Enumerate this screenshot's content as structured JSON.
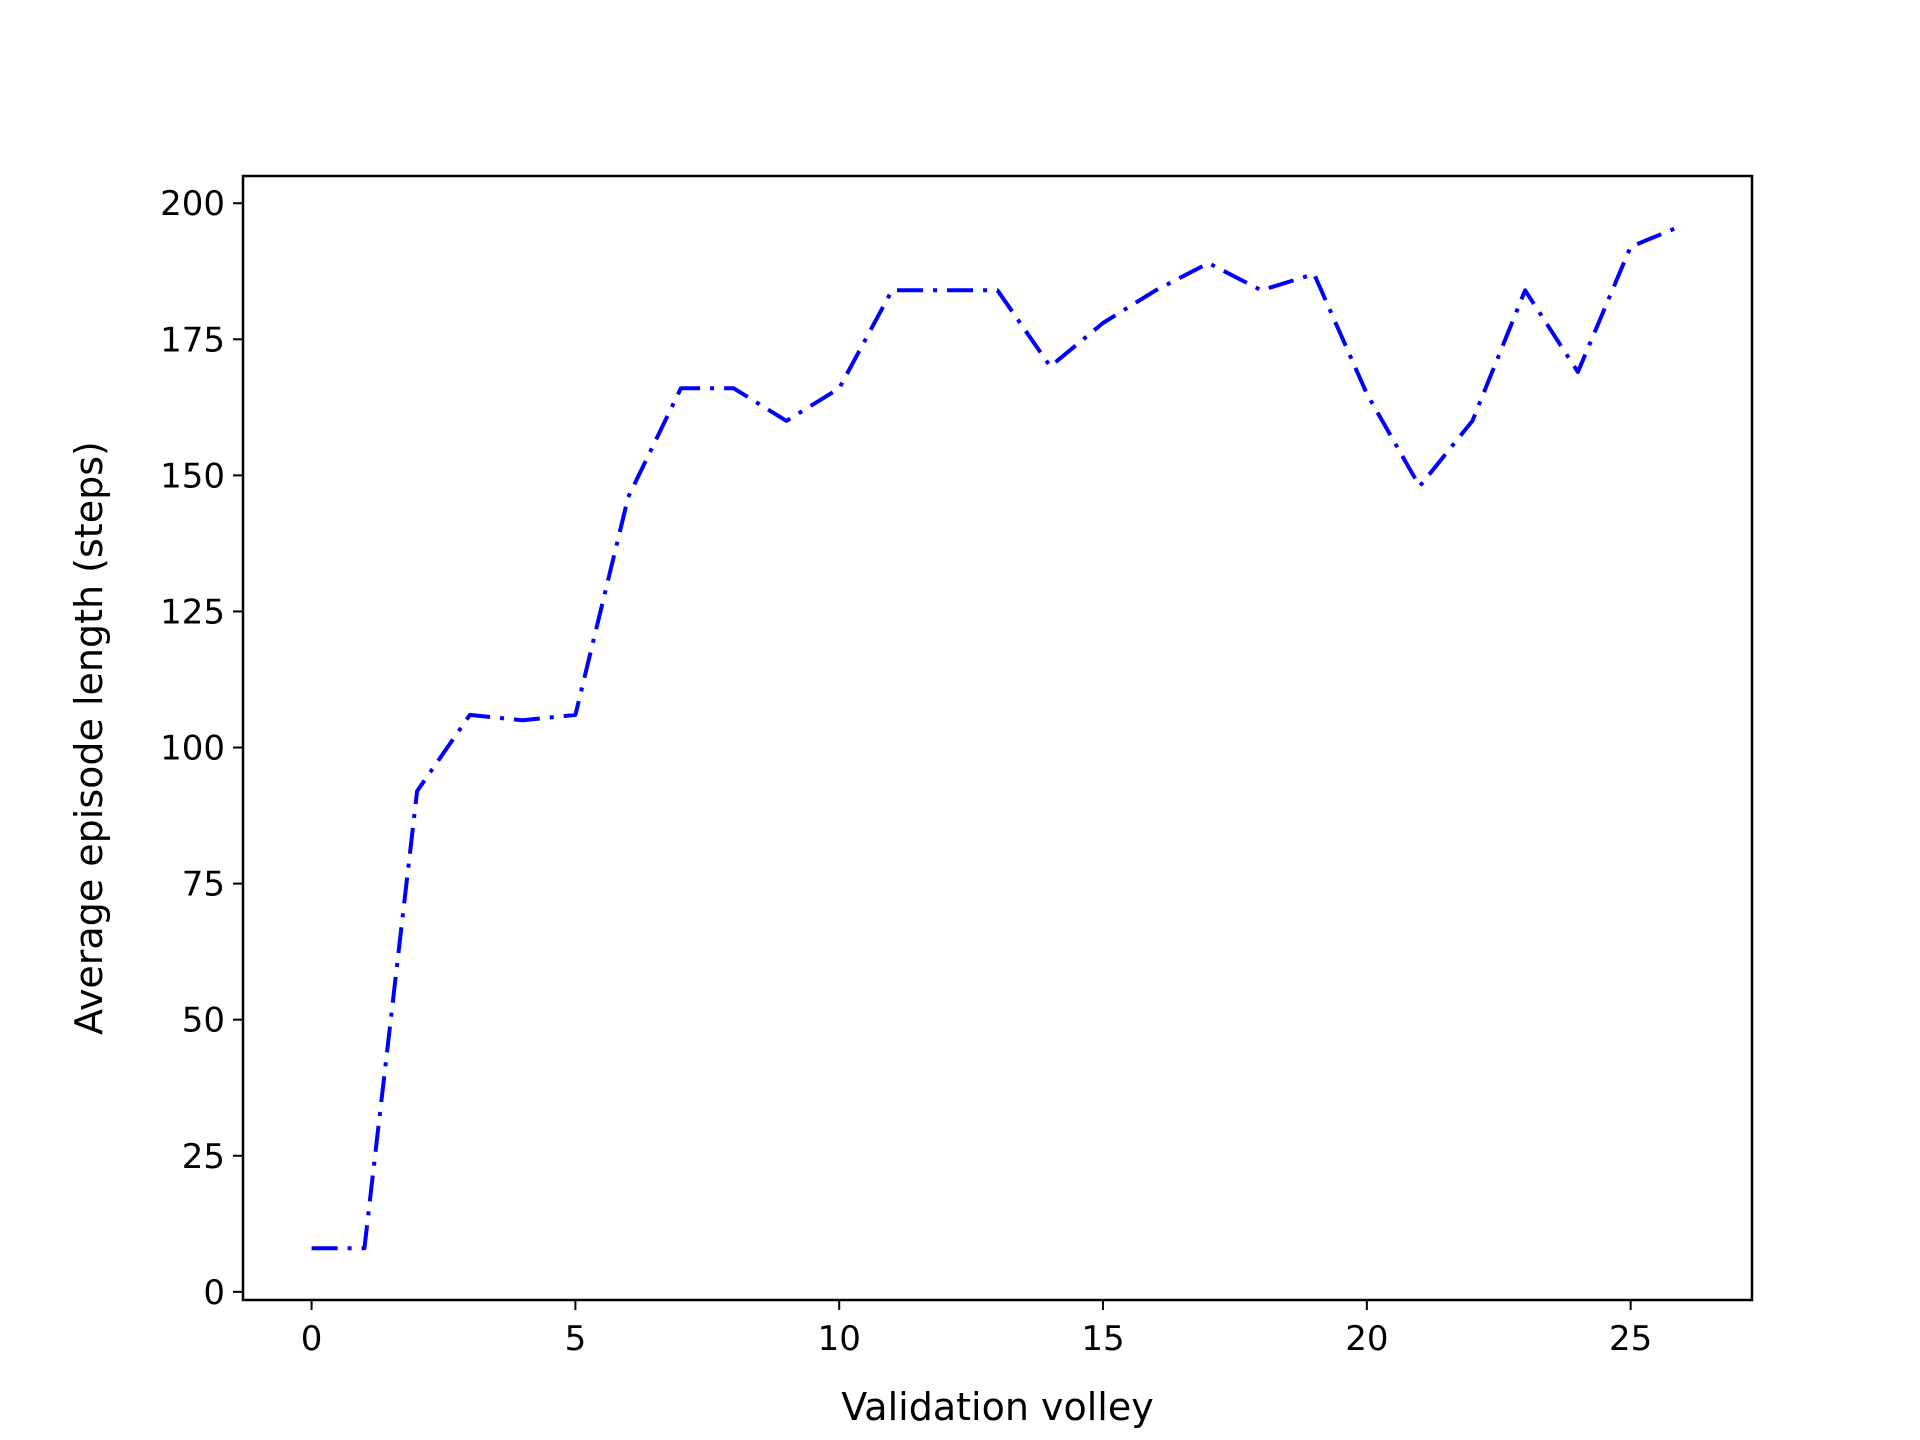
{
  "chart_data": {
    "type": "line",
    "title": "",
    "xlabel": "Validation volley",
    "ylabel": "Average episode length (steps)",
    "xlim": [
      -1.3,
      27.3
    ],
    "ylim": [
      -1.5,
      205
    ],
    "xticks": [
      0,
      5,
      10,
      15,
      20,
      25
    ],
    "yticks": [
      0,
      25,
      50,
      75,
      100,
      125,
      150,
      175,
      200
    ],
    "grid": false,
    "legend": "none",
    "series": [
      {
        "color": "#0000ff",
        "line_style": "dash-dot",
        "x": [
          0,
          1,
          2,
          3,
          4,
          5,
          6,
          7,
          8,
          9,
          10,
          11,
          12,
          13,
          14,
          15,
          16,
          17,
          18,
          19,
          20,
          21,
          22,
          23,
          24,
          25,
          26
        ],
        "y": [
          8,
          8,
          92,
          106,
          105,
          106,
          146,
          166,
          166,
          160,
          166,
          184,
          184,
          184,
          170,
          178,
          184,
          189,
          184,
          187,
          165,
          148,
          160,
          184,
          169,
          192,
          196
        ]
      }
    ]
  }
}
